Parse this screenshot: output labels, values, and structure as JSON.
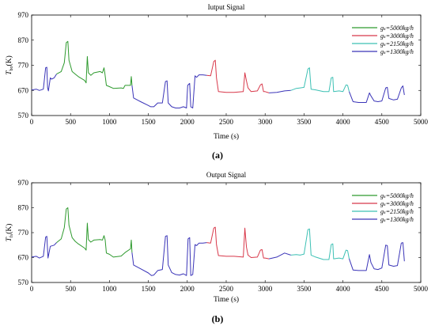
{
  "chart_data": [
    {
      "type": "line",
      "panel_label": "(a)",
      "title": "Iutput Signal",
      "xlabel": "Time (s)",
      "ylabel_main": "T",
      "ylabel_sub": "bo",
      "ylabel_unit": "(K)",
      "xlim": [
        0,
        5000
      ],
      "ylim": [
        570,
        970
      ],
      "xticks": [
        0,
        500,
        1000,
        1500,
        2000,
        2500,
        3000,
        3500,
        4000,
        4500,
        5000
      ],
      "yticks": [
        570,
        670,
        770,
        870,
        970
      ],
      "grid": false,
      "legend_position": "top-right",
      "legend": [
        {
          "label": "gₛ=5000kg/h",
          "color": "#2e9a2e"
        },
        {
          "label": "gₛ=3000kg/h",
          "color": "#d8384a"
        },
        {
          "label": "gₛ=2150kg/h",
          "color": "#3cc0b4"
        },
        {
          "label": "gₛ=1300kg/h",
          "color": "#3a34b8"
        }
      ],
      "series": [
        {
          "color": "#3a34b8",
          "points": [
            [
              0,
              672
            ],
            [
              60,
              675
            ],
            [
              100,
              670
            ],
            [
              150,
              675
            ],
            [
              180,
              760
            ],
            [
              195,
              762
            ],
            [
              205,
              680
            ],
            [
              215,
              668
            ],
            [
              240,
              720
            ],
            [
              255,
              715
            ],
            [
              290,
              720
            ],
            [
              320,
              735
            ]
          ]
        },
        {
          "color": "#2e9a2e",
          "points": [
            [
              320,
              735
            ],
            [
              380,
              745
            ],
            [
              420,
              780
            ],
            [
              445,
              860
            ],
            [
              465,
              865
            ],
            [
              480,
              790
            ],
            [
              520,
              745
            ],
            [
              560,
              735
            ],
            [
              600,
              725
            ],
            [
              680,
              710
            ],
            [
              700,
              700
            ],
            [
              715,
              805
            ],
            [
              730,
              740
            ],
            [
              760,
              730
            ],
            [
              800,
              740
            ],
            [
              880,
              745
            ],
            [
              910,
              740
            ],
            [
              930,
              760
            ],
            [
              940,
              740
            ],
            [
              960,
              690
            ],
            [
              1000,
              685
            ],
            [
              1050,
              678
            ],
            [
              1150,
              680
            ],
            [
              1180,
              678
            ],
            [
              1200,
              690
            ],
            [
              1270,
              690
            ],
            [
              1280,
              725
            ],
            [
              1290,
              690
            ]
          ]
        },
        {
          "color": "#3a34b8",
          "points": [
            [
              1290,
              690
            ],
            [
              1310,
              640
            ],
            [
              1400,
              625
            ],
            [
              1500,
              610
            ],
            [
              1530,
              605
            ],
            [
              1570,
              605
            ],
            [
              1620,
              620
            ],
            [
              1680,
              620
            ],
            [
              1720,
              705
            ],
            [
              1740,
              708
            ],
            [
              1755,
              620
            ],
            [
              1800,
              605
            ],
            [
              1850,
              600
            ],
            [
              1900,
              600
            ],
            [
              1950,
              605
            ],
            [
              1990,
              600
            ],
            [
              2005,
              690
            ],
            [
              2030,
              698
            ],
            [
              2045,
              605
            ],
            [
              2070,
              600
            ],
            [
              2100,
              728
            ],
            [
              2120,
              722
            ],
            [
              2150,
              732
            ],
            [
              2200,
              732
            ],
            [
              2250,
              730
            ]
          ]
        },
        {
          "color": "#d8384a",
          "points": [
            [
              2250,
              730
            ],
            [
              2300,
              728
            ],
            [
              2340,
              785
            ],
            [
              2360,
              790
            ],
            [
              2375,
              720
            ],
            [
              2400,
              665
            ],
            [
              2500,
              662
            ],
            [
              2600,
              662
            ],
            [
              2720,
              665
            ],
            [
              2740,
              740
            ],
            [
              2760,
              708
            ],
            [
              2780,
              680
            ],
            [
              2820,
              665
            ],
            [
              2900,
              668
            ],
            [
              2940,
              692
            ],
            [
              2960,
              696
            ],
            [
              2980,
              665
            ],
            [
              3000,
              665
            ],
            [
              3050,
              660
            ]
          ]
        },
        {
          "color": "#3a34b8",
          "points": [
            [
              3050,
              660
            ],
            [
              3150,
              662
            ],
            [
              3250,
              668
            ],
            [
              3330,
              670
            ]
          ]
        },
        {
          "color": "#3cc0b4",
          "points": [
            [
              3330,
              670
            ],
            [
              3400,
              678
            ],
            [
              3450,
              680
            ],
            [
              3500,
              682
            ],
            [
              3550,
              755
            ],
            [
              3570,
              760
            ],
            [
              3590,
              675
            ],
            [
              3650,
              672
            ],
            [
              3750,
              665
            ],
            [
              3820,
              665
            ],
            [
              3850,
              720
            ],
            [
              3870,
              722
            ],
            [
              3880,
              665
            ],
            [
              3950,
              668
            ],
            [
              4000,
              665
            ],
            [
              4040,
              692
            ],
            [
              4060,
              690
            ],
            [
              4080,
              665
            ]
          ]
        },
        {
          "color": "#3a34b8",
          "points": [
            [
              4080,
              665
            ],
            [
              4130,
              625
            ],
            [
              4200,
              622
            ],
            [
              4300,
              622
            ],
            [
              4340,
              660
            ],
            [
              4360,
              648
            ],
            [
              4400,
              628
            ],
            [
              4450,
              625
            ],
            [
              4500,
              628
            ],
            [
              4550,
              680
            ],
            [
              4570,
              682
            ],
            [
              4590,
              638
            ],
            [
              4650,
              632
            ],
            [
              4700,
              635
            ],
            [
              4750,
              680
            ],
            [
              4770,
              688
            ],
            [
              4790,
              652
            ]
          ]
        }
      ]
    },
    {
      "type": "line",
      "panel_label": "(b)",
      "title": "Output Signal",
      "xlabel": "Time (s)",
      "ylabel_main": "T",
      "ylabel_sub": "fs",
      "ylabel_unit": "(K)",
      "xlim": [
        0,
        5000
      ],
      "ylim": [
        570,
        970
      ],
      "xticks": [
        0,
        500,
        1000,
        1500,
        2000,
        2500,
        3000,
        3500,
        4000,
        4500,
        5000
      ],
      "yticks": [
        570,
        670,
        770,
        870,
        970
      ],
      "grid": false,
      "legend_position": "top-right",
      "legend": [
        {
          "label": "gₛ=5000kg/h",
          "color": "#2e9a2e"
        },
        {
          "label": "gₛ=3000kg/h",
          "color": "#d8384a"
        },
        {
          "label": "gₛ=2150kg/h",
          "color": "#3cc0b4"
        },
        {
          "label": "gₛ=1300kg/h",
          "color": "#3a34b8"
        }
      ],
      "series": [
        {
          "color": "#3a34b8",
          "points": [
            [
              0,
              672
            ],
            [
              60,
              675
            ],
            [
              100,
              668
            ],
            [
              150,
              675
            ],
            [
              180,
              752
            ],
            [
              195,
              755
            ],
            [
              210,
              668
            ],
            [
              240,
              715
            ],
            [
              290,
              720
            ],
            [
              320,
              730
            ]
          ]
        },
        {
          "color": "#2e9a2e",
          "points": [
            [
              320,
              730
            ],
            [
              380,
              745
            ],
            [
              420,
              790
            ],
            [
              445,
              865
            ],
            [
              465,
              870
            ],
            [
              480,
              800
            ],
            [
              520,
              750
            ],
            [
              560,
              735
            ],
            [
              600,
              725
            ],
            [
              680,
              708
            ],
            [
              700,
              700
            ],
            [
              715,
              808
            ],
            [
              730,
              742
            ],
            [
              760,
              732
            ],
            [
              800,
              740
            ],
            [
              880,
              742
            ],
            [
              910,
              740
            ],
            [
              930,
              758
            ],
            [
              945,
              740
            ],
            [
              960,
              688
            ],
            [
              1000,
              683
            ],
            [
              1050,
              672
            ],
            [
              1150,
              676
            ],
            [
              1200,
              690
            ],
            [
              1270,
              705
            ],
            [
              1280,
              740
            ],
            [
              1290,
              690
            ]
          ]
        },
        {
          "color": "#3a34b8",
          "points": [
            [
              1290,
              690
            ],
            [
              1310,
              640
            ],
            [
              1400,
              625
            ],
            [
              1500,
              608
            ],
            [
              1540,
              598
            ],
            [
              1570,
              600
            ],
            [
              1620,
              618
            ],
            [
              1680,
              622
            ],
            [
              1720,
              755
            ],
            [
              1740,
              758
            ],
            [
              1755,
              640
            ],
            [
              1800,
              610
            ],
            [
              1850,
              602
            ],
            [
              1900,
              600
            ],
            [
              1950,
              605
            ],
            [
              1990,
              598
            ],
            [
              2010,
              745
            ],
            [
              2030,
              750
            ],
            [
              2045,
              598
            ],
            [
              2070,
              602
            ],
            [
              2100,
              722
            ],
            [
              2120,
              718
            ],
            [
              2150,
              728
            ],
            [
              2200,
              728
            ],
            [
              2250,
              730
            ]
          ]
        },
        {
          "color": "#d8384a",
          "points": [
            [
              2250,
              730
            ],
            [
              2300,
              728
            ],
            [
              2340,
              788
            ],
            [
              2360,
              792
            ],
            [
              2375,
              722
            ],
            [
              2400,
              678
            ],
            [
              2500,
              675
            ],
            [
              2600,
              675
            ],
            [
              2720,
              672
            ],
            [
              2740,
              788
            ],
            [
              2760,
              712
            ],
            [
              2780,
              680
            ],
            [
              2820,
              670
            ],
            [
              2900,
              672
            ],
            [
              2940,
              700
            ],
            [
              2960,
              702
            ],
            [
              2980,
              668
            ],
            [
              3000,
              668
            ],
            [
              3050,
              665
            ]
          ]
        },
        {
          "color": "#3a34b8",
          "points": [
            [
              3050,
              665
            ],
            [
              3150,
              672
            ],
            [
              3250,
              688
            ],
            [
              3330,
              680
            ]
          ]
        },
        {
          "color": "#3cc0b4",
          "points": [
            [
              3330,
              680
            ],
            [
              3400,
              682
            ],
            [
              3450,
              680
            ],
            [
              3500,
              684
            ],
            [
              3550,
              782
            ],
            [
              3570,
              785
            ],
            [
              3590,
              680
            ],
            [
              3650,
              672
            ],
            [
              3750,
              662
            ],
            [
              3820,
              662
            ],
            [
              3850,
              722
            ],
            [
              3870,
              725
            ],
            [
              3880,
              665
            ],
            [
              3950,
              668
            ],
            [
              4000,
              665
            ],
            [
              4040,
              700
            ],
            [
              4060,
              698
            ],
            [
              4080,
              665
            ]
          ]
        },
        {
          "color": "#3a34b8",
          "points": [
            [
              4080,
              665
            ],
            [
              4130,
              620
            ],
            [
              4200,
              618
            ],
            [
              4300,
              618
            ],
            [
              4340,
              682
            ],
            [
              4360,
              650
            ],
            [
              4400,
              625
            ],
            [
              4450,
              622
            ],
            [
              4500,
              628
            ],
            [
              4550,
              720
            ],
            [
              4570,
              718
            ],
            [
              4590,
              640
            ],
            [
              4650,
              635
            ],
            [
              4700,
              638
            ],
            [
              4750,
              728
            ],
            [
              4770,
              730
            ],
            [
              4790,
              655
            ]
          ]
        }
      ]
    }
  ]
}
